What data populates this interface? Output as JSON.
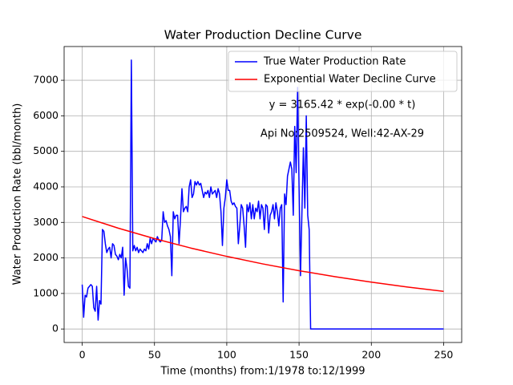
{
  "chart_data": {
    "type": "line",
    "title": "Water Production Decline Curve",
    "xlabel": "Time (months) from:1/1978 to:12/1999",
    "ylabel": "Water Production Rate (bbl/month)",
    "annotations": [
      "y = 3165.42 * exp(-0.00 * t)",
      "Api No:2509524, Well:42-AX-29"
    ],
    "xlim": [
      -12.5,
      262.5
    ],
    "ylim": [
      -380,
      7950
    ],
    "xticks": [
      0,
      50,
      100,
      150,
      200,
      250
    ],
    "yticks": [
      0,
      1000,
      2000,
      3000,
      4000,
      5000,
      6000,
      7000
    ],
    "grid": true,
    "legend": "upper right",
    "series": [
      {
        "name": "True Water Production Rate",
        "color": "#0000ff",
        "x": [
          0,
          1,
          2,
          3,
          4,
          5,
          6,
          7,
          8,
          9,
          10,
          11,
          12,
          13,
          14,
          15,
          16,
          17,
          18,
          19,
          20,
          21,
          22,
          23,
          24,
          25,
          26,
          27,
          28,
          29,
          30,
          31,
          32,
          33,
          34,
          35,
          36,
          37,
          38,
          39,
          40,
          41,
          42,
          43,
          44,
          45,
          46,
          47,
          48,
          49,
          50,
          51,
          52,
          53,
          54,
          55,
          56,
          57,
          58,
          59,
          60,
          61,
          62,
          63,
          64,
          65,
          66,
          67,
          68,
          69,
          70,
          71,
          72,
          73,
          74,
          75,
          76,
          77,
          78,
          79,
          80,
          81,
          82,
          83,
          84,
          85,
          86,
          87,
          88,
          89,
          90,
          91,
          92,
          93,
          94,
          95,
          96,
          97,
          98,
          99,
          100,
          101,
          102,
          103,
          104,
          105,
          106,
          107,
          108,
          109,
          110,
          111,
          112,
          113,
          114,
          115,
          116,
          117,
          118,
          119,
          120,
          121,
          122,
          123,
          124,
          125,
          126,
          127,
          128,
          129,
          130,
          131,
          132,
          133,
          134,
          135,
          136,
          137,
          138,
          139,
          140,
          141,
          142,
          143,
          144,
          145,
          146,
          147,
          148,
          149,
          150,
          151,
          152,
          153,
          154,
          155,
          156,
          157,
          158,
          250
        ],
        "values": [
          1250,
          330,
          950,
          900,
          1150,
          1200,
          1250,
          1200,
          600,
          500,
          1200,
          250,
          800,
          700,
          2800,
          2750,
          2400,
          2150,
          2250,
          2300,
          2000,
          2400,
          2350,
          2100,
          2050,
          1950,
          2100,
          2000,
          2300,
          950,
          2000,
          1700,
          1200,
          1150,
          7570,
          2200,
          2350,
          2200,
          2300,
          2150,
          2250,
          2200,
          2150,
          2250,
          2200,
          2400,
          2250,
          2550,
          2400,
          2550,
          2500,
          2450,
          2600,
          2500,
          2450,
          2500,
          3300,
          3000,
          3050,
          2900,
          2800,
          2600,
          1500,
          3300,
          3100,
          3200,
          3200,
          2400,
          3100,
          3950,
          3300,
          3400,
          3450,
          3300,
          4000,
          4200,
          3700,
          3800,
          4150,
          4050,
          4150,
          4050,
          4100,
          3900,
          3700,
          3850,
          3800,
          3900,
          3700,
          4000,
          3800,
          3850,
          3900,
          3700,
          3950,
          3800,
          3300,
          2350,
          3400,
          3700,
          4200,
          3900,
          3900,
          3600,
          3500,
          3550,
          3450,
          3400,
          2400,
          2900,
          3500,
          3400,
          2900,
          2300,
          3500,
          3300,
          3550,
          3100,
          3500,
          3100,
          3400,
          3300,
          3600,
          3100,
          3500,
          3400,
          2800,
          3500,
          3450,
          2700,
          3200,
          3300,
          3500,
          3100,
          3550,
          3300,
          2900,
          3400,
          3500,
          760,
          3800,
          3500,
          4300,
          4500,
          4700,
          4500,
          3200,
          5700,
          4400,
          6800,
          4000,
          1500,
          3300,
          5100,
          3400,
          6000,
          3200,
          2800,
          0,
          0
        ]
      },
      {
        "name": "Exponential Water Decline Curve",
        "color": "#ff0000",
        "x": [
          0,
          25,
          50,
          75,
          100,
          125,
          150,
          175,
          200,
          225,
          250
        ],
        "values": [
          3165,
          2837,
          2543,
          2279,
          2043,
          1831,
          1641,
          1471,
          1318,
          1181,
          1059
        ]
      }
    ]
  }
}
